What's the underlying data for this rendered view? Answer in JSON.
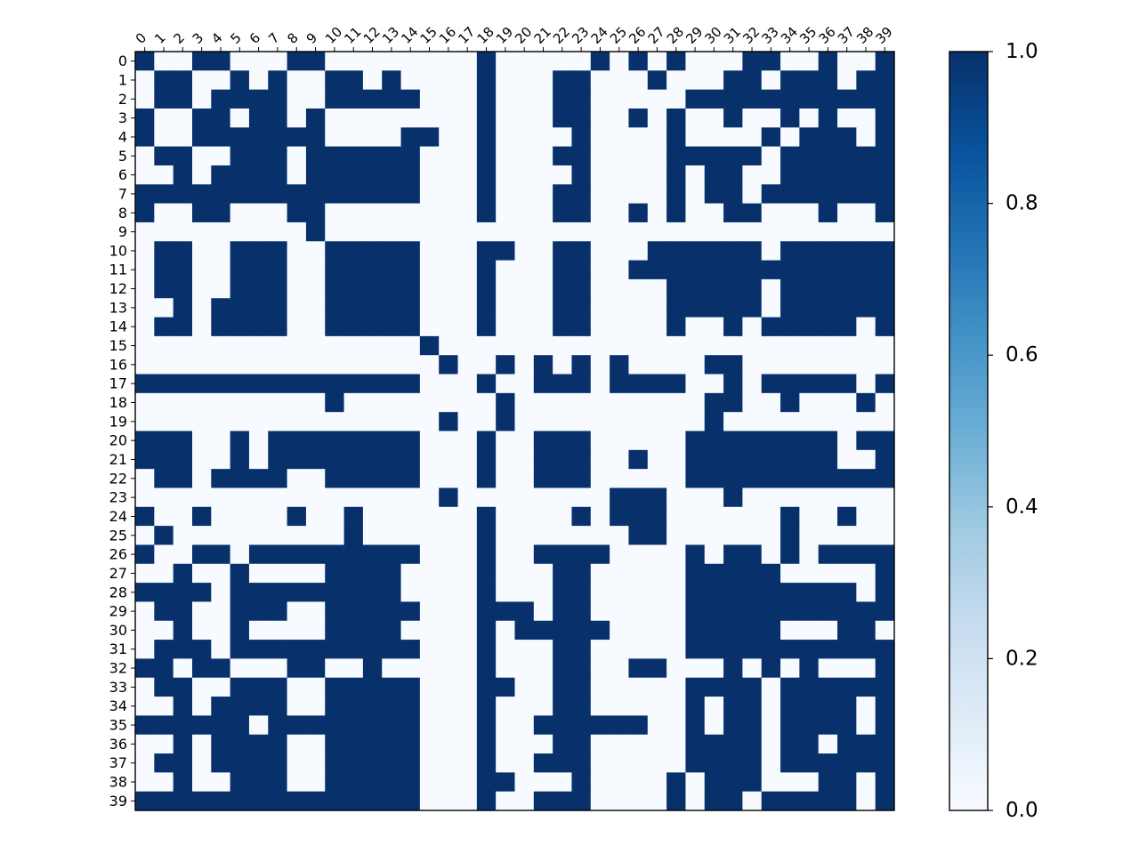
{
  "chart_data": {
    "type": "heatmap",
    "title": "",
    "xlabel": "",
    "ylabel": "",
    "x_tick_labels": [
      "0",
      "1",
      "2",
      "3",
      "4",
      "5",
      "6",
      "7",
      "8",
      "9",
      "10",
      "11",
      "12",
      "13",
      "14",
      "15",
      "16",
      "17",
      "18",
      "19",
      "20",
      "21",
      "22",
      "23",
      "24",
      "25",
      "26",
      "27",
      "28",
      "29",
      "30",
      "31",
      "32",
      "33",
      "34",
      "35",
      "36",
      "37",
      "38",
      "39"
    ],
    "y_tick_labels": [
      "0",
      "1",
      "2",
      "3",
      "4",
      "5",
      "6",
      "7",
      "8",
      "9",
      "10",
      "11",
      "12",
      "13",
      "14",
      "15",
      "16",
      "17",
      "18",
      "19",
      "20",
      "21",
      "22",
      "23",
      "24",
      "25",
      "26",
      "27",
      "28",
      "29",
      "30",
      "31",
      "32",
      "33",
      "34",
      "35",
      "36",
      "37",
      "38",
      "39"
    ],
    "colorbar": {
      "range": [
        0.0,
        1.0
      ],
      "ticks": [
        "0.0",
        "0.2",
        "0.4",
        "0.6",
        "0.8",
        "1.0"
      ],
      "colormap": "Blues",
      "color_low": "#f7fbff",
      "color_high": "#08306b"
    },
    "grid": false,
    "matrix": [
      "1001100011000000001000001010100011001001",
      "0110010100110100001000110001000110111011",
      "0110111100111110001000110000011111111111",
      "1001101101000000001000110010100100101001",
      "1001111111000011001000010000100001011101",
      "0110011101111110001000110000111110111111",
      "0010111101111110001000010000101100111111",
      "1111111111111110001000110000101101111111",
      "1001100011000000001000110010100110001001",
      "0000000001000000000000000000000000000000",
      "0110011100111110001100110001111110111111",
      "0110011100111110001000110011111111111111",
      "0110011100111110001000110000111110111111",
      "0010111100111110001000110000111110111111",
      "0110111100111110001000110000100101111101",
      "0000000000000001000000000000000000000000",
      "0000000000000000100101010100001100000000",
      "1111111111111110001001110111100101111101",
      "0000000000100000000100000000001100100010",
      "0000000000000000100100000000001000000000",
      "1110010111111110001001110000011111111011",
      "1110010111111110001001110010011111111001",
      "0110111100111110001001110000011111111111",
      "0000000000000000100000000111000100000000",
      "1001000010010000001000010111000000100100",
      "0100000000010000001000000011000000100000",
      "1001101111111110001001111000010110101111",
      "0010010000111100001000110000011111000001",
      "1111011111111100001000110000011111111101",
      "0110011100111110001110110000011111111111",
      "0010010000111100001011111000011111000110",
      "0111011111111110001000110000011111111111",
      "1101100011001000001000110011000101010001",
      "0110011100111110001100110000011110111111",
      "0010111100111110001000110000010110111101",
      "1111110111111110001001111110010110111101",
      "0010111100111110001000110000011110110111",
      "0110111100111110001001110000011110111111",
      "0010011100111110001100010000101110001101",
      "1111111111111110001001110000101101111101"
    ]
  }
}
